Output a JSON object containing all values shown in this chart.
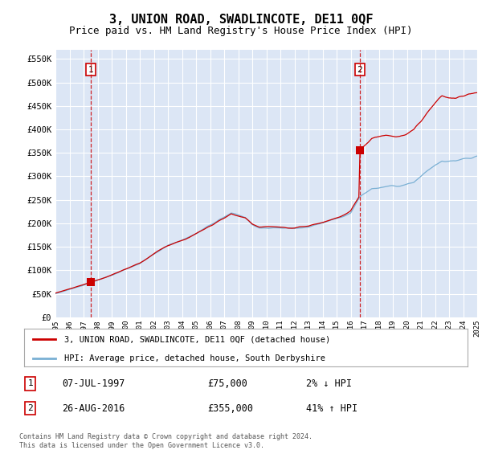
{
  "title": "3, UNION ROAD, SWADLINCOTE, DE11 0QF",
  "subtitle": "Price paid vs. HM Land Registry's House Price Index (HPI)",
  "title_fontsize": 11,
  "subtitle_fontsize": 9,
  "background_color": "#dce6f5",
  "hpi_color": "#7ab0d4",
  "price_color": "#cc0000",
  "vline_color": "#cc0000",
  "ylim": [
    0,
    570000
  ],
  "yticks": [
    0,
    50000,
    100000,
    150000,
    200000,
    250000,
    300000,
    350000,
    400000,
    450000,
    500000,
    550000
  ],
  "x_start_year": 1995,
  "x_end_year": 2025,
  "purchase1_year": 1997.52,
  "purchase1_price": 75000,
  "purchase2_year": 2016.65,
  "purchase2_price": 355000,
  "legend_label_price": "3, UNION ROAD, SWADLINCOTE, DE11 0QF (detached house)",
  "legend_label_hpi": "HPI: Average price, detached house, South Derbyshire",
  "purchase1_date": "07-JUL-1997",
  "purchase1_amount": "£75,000",
  "purchase1_hpi_diff": "2% ↓ HPI",
  "purchase2_date": "26-AUG-2016",
  "purchase2_amount": "£355,000",
  "purchase2_hpi_diff": "41% ↑ HPI",
  "footer_text": "Contains HM Land Registry data © Crown copyright and database right 2024.\nThis data is licensed under the Open Government Licence v3.0."
}
